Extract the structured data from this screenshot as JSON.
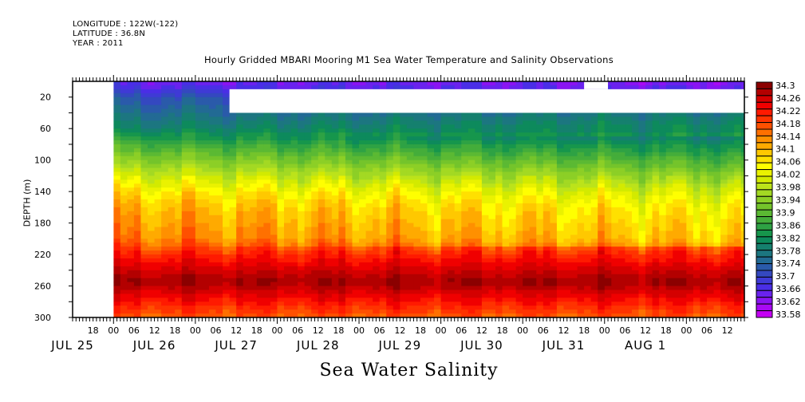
{
  "header": {
    "longitude": "LONGITUDE : 122W(-122)",
    "latitude": "LATITUDE : 36.8N",
    "year": "YEAR : 2011"
  },
  "chart_data": {
    "type": "heatmap",
    "title": "Hourly Gridded MBARI Mooring M1 Sea Water Temperature and Salinity Observations",
    "xlabel": "Sea Water Salinity",
    "ylabel": "DEPTH (m)",
    "variable": "Sea Water Salinity",
    "x_axis": {
      "type": "time",
      "start": "JUL 25 12:00",
      "end": "AUG 1 17:00",
      "data_start": "JUL 26 00:00",
      "hour_tick_labels": [
        "18",
        "00",
        "06",
        "12",
        "18",
        "00",
        "06",
        "12",
        "18",
        "00",
        "06",
        "12",
        "18",
        "00",
        "06",
        "12",
        "18",
        "00",
        "06",
        "12",
        "18",
        "00",
        "06",
        "12",
        "18",
        "00",
        "06",
        "12",
        "18",
        "00",
        "06",
        "12"
      ],
      "hour_ticks_hours_from_jul25_00": [
        18,
        24,
        30,
        36,
        42,
        48,
        54,
        60,
        66,
        72,
        78,
        84,
        90,
        96,
        102,
        108,
        114,
        120,
        126,
        132,
        138,
        144,
        150,
        156,
        162,
        168,
        174,
        180,
        186,
        192,
        198,
        204
      ],
      "day_labels": [
        {
          "label": "JUL 25",
          "hour": 12
        },
        {
          "label": "JUL 26",
          "hour": 36
        },
        {
          "label": "JUL 27",
          "hour": 60
        },
        {
          "label": "JUL 28",
          "hour": 84
        },
        {
          "label": "JUL 29",
          "hour": 108
        },
        {
          "label": "JUL 30",
          "hour": 132
        },
        {
          "label": "JUL 31",
          "hour": 156
        },
        {
          "label": "AUG 1",
          "hour": 180
        }
      ],
      "range_hours_from_jul25_00": [
        12,
        209
      ]
    },
    "y_axis": {
      "range": [
        0,
        300
      ],
      "inverted": true,
      "tick_values": [
        20,
        60,
        100,
        140,
        180,
        220,
        260,
        300
      ],
      "tick_labels": [
        "20",
        "60",
        "100",
        "140",
        "180",
        "220",
        "260",
        "300"
      ]
    },
    "colorbar": {
      "levels": [
        "34.3",
        "34.26",
        "34.22",
        "34.18",
        "34.14",
        "34.1",
        "34.06",
        "34.02",
        "33.98",
        "33.94",
        "33.9",
        "33.86",
        "33.82",
        "33.78",
        "33.74",
        "33.7",
        "33.66",
        "33.62",
        "33.58"
      ],
      "colors": [
        "#8b0000",
        "#b30000",
        "#d40000",
        "#f00000",
        "#ff1a00",
        "#ff3300",
        "#ff5000",
        "#ff7000",
        "#ff9000",
        "#ffaa00",
        "#ffc800",
        "#ffe000",
        "#ffff00",
        "#eaf200",
        "#d3ea00",
        "#bce31a",
        "#a3d923",
        "#8ccf26",
        "#74c42b",
        "#5bb933",
        "#44ad3a",
        "#2ea244",
        "#16964c",
        "#0d8a5c",
        "#15806e",
        "#1c7680",
        "#226a94",
        "#2a5aaa",
        "#3448c0",
        "#3f3ad6",
        "#4a2ee6",
        "#6a22ee",
        "#8a14f2",
        "#a80af4",
        "#c400f4"
      ],
      "min": 33.58,
      "max": 34.3,
      "step": 0.02
    },
    "missing_regions": [
      {
        "desc": "no data before JUL 26 00Z",
        "hours": [
          12,
          24
        ],
        "depth": [
          0,
          300
        ]
      },
      {
        "desc": "gap at ~10-40 m after JUL 27 ~10Z",
        "hours": [
          58,
          209
        ],
        "depth": [
          10,
          40
        ]
      },
      {
        "desc": "gap near surface around JUL 30 18Z-21Z",
        "hours": [
          162,
          169
        ],
        "depth": [
          0,
          10
        ]
      }
    ],
    "profile_summary": [
      {
        "depth": 5,
        "salinity": 33.66
      },
      {
        "depth": 20,
        "salinity": 33.72
      },
      {
        "depth": 40,
        "salinity": 33.76
      },
      {
        "depth": 60,
        "salinity": 33.8
      },
      {
        "depth": 80,
        "salinity": 33.88
      },
      {
        "depth": 100,
        "salinity": 33.94
      },
      {
        "depth": 120,
        "salinity": 34.0
      },
      {
        "depth": 140,
        "salinity": 34.06
      },
      {
        "depth": 160,
        "salinity": 34.1
      },
      {
        "depth": 180,
        "salinity": 34.12
      },
      {
        "depth": 200,
        "salinity": 34.14
      },
      {
        "depth": 220,
        "salinity": 34.2
      },
      {
        "depth": 240,
        "salinity": 34.25
      },
      {
        "depth": 255,
        "salinity": 34.28
      },
      {
        "depth": 270,
        "salinity": 34.24
      },
      {
        "depth": 285,
        "salinity": 34.2
      },
      {
        "depth": 300,
        "salinity": 34.16
      }
    ]
  }
}
